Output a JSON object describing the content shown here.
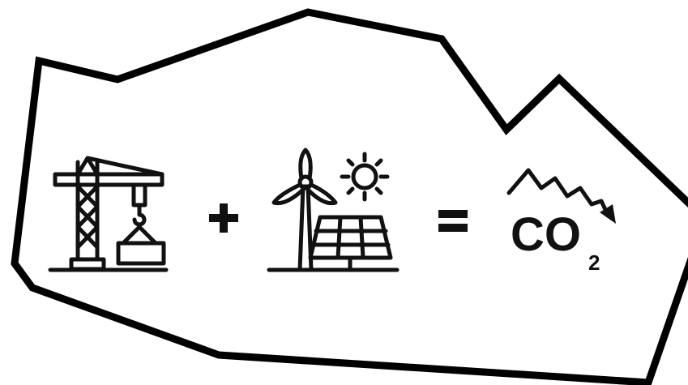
{
  "formula": {
    "co": "CO",
    "subscript": "2"
  }
}
